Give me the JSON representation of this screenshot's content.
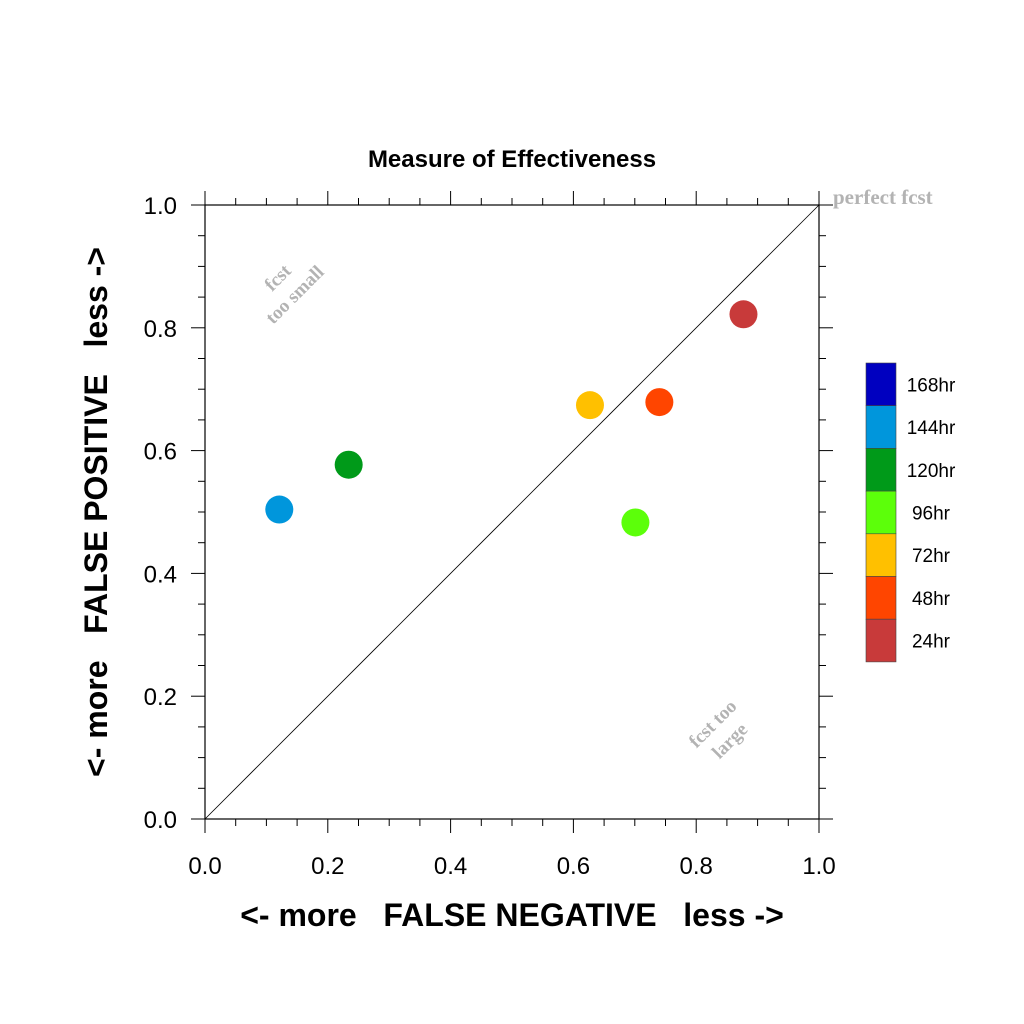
{
  "chart_data": {
    "type": "scatter",
    "title": "Measure of Effectiveness",
    "xlabel": "<- more   FALSE NEGATIVE   less ->",
    "ylabel": "<- more   FALSE POSITIVE   less ->",
    "xlim": [
      0.0,
      1.0
    ],
    "ylim": [
      0.0,
      1.0
    ],
    "xticks": [
      "0.0",
      "0.2",
      "0.4",
      "0.6",
      "0.8",
      "1.0"
    ],
    "yticks": [
      "0.0",
      "0.2",
      "0.4",
      "0.6",
      "0.8",
      "1.0"
    ],
    "grid": false,
    "reference_line": {
      "from": [
        0.0,
        0.0
      ],
      "to": [
        1.0,
        1.0
      ]
    },
    "annotations": [
      {
        "id": "perfect",
        "lines": [
          "perfect fcst"
        ]
      },
      {
        "id": "small",
        "lines": [
          "fcst",
          "too small"
        ]
      },
      {
        "id": "large",
        "lines": [
          "fcst too",
          "large"
        ]
      }
    ],
    "legend_position": "right",
    "legend": [
      {
        "label": "168hr",
        "color": "#0000c0"
      },
      {
        "label": "144hr",
        "color": "#0096dc"
      },
      {
        "label": "120hr",
        "color": "#009a19"
      },
      {
        "label": "96hr",
        "color": "#5cff0a"
      },
      {
        "label": "72hr",
        "color": "#ffc000"
      },
      {
        "label": "48hr",
        "color": "#ff4500"
      },
      {
        "label": "24hr",
        "color": "#c83a3a"
      }
    ],
    "series": [
      {
        "name": "24hr",
        "x": 0.877,
        "y": 0.822,
        "color": "#c83a3a"
      },
      {
        "name": "48hr",
        "x": 0.74,
        "y": 0.679,
        "color": "#ff4500"
      },
      {
        "name": "72hr",
        "x": 0.627,
        "y": 0.674,
        "color": "#ffc000"
      },
      {
        "name": "96hr",
        "x": 0.701,
        "y": 0.483,
        "color": "#5cff0a"
      },
      {
        "name": "120hr",
        "x": 0.234,
        "y": 0.577,
        "color": "#009a19"
      },
      {
        "name": "144hr",
        "x": 0.121,
        "y": 0.504,
        "color": "#0096dc"
      }
    ]
  }
}
